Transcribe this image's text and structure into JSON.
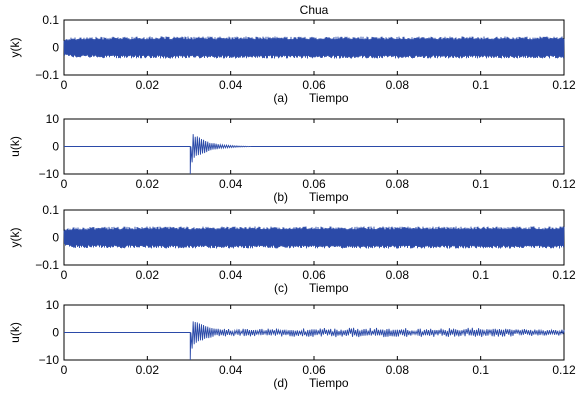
{
  "figure": {
    "title": "Chua",
    "line_color": "#2b4aa8"
  },
  "chart_data": [
    {
      "panel": "(a)",
      "type": "line",
      "title": "Chua",
      "xlabel": "Tiempo",
      "ylabel": "y(k)",
      "xlim": [
        0,
        0.12
      ],
      "ylim": [
        -0.1,
        0.1
      ],
      "xticks": [
        0,
        0.02,
        0.04,
        0.06,
        0.08,
        0.1,
        0.12
      ],
      "xticklabels": [
        "0",
        "0.02",
        "0.04",
        "0.06",
        "0.08",
        "0.1",
        "0.12"
      ],
      "yticks": [
        -0.1,
        0,
        0.1
      ],
      "yticklabels": [
        "−0.1",
        "0",
        "0.1"
      ],
      "grid": false,
      "series": [
        {
          "kind": "dense_oscillation",
          "x_range": [
            0,
            0.12
          ],
          "envelope": [
            [
              0,
              0.03
            ],
            [
              0.002,
              0.038
            ],
            [
              0.02,
              0.04
            ],
            [
              0.04,
              0.04
            ],
            [
              0.06,
              0.04
            ],
            [
              0.08,
              0.04
            ],
            [
              0.1,
              0.04
            ],
            [
              0.12,
              0.04
            ]
          ],
          "period": 0.00025
        }
      ]
    },
    {
      "panel": "(b)",
      "type": "line",
      "title": "",
      "xlabel": "Tiempo",
      "ylabel": "u(k)",
      "xlim": [
        0,
        0.12
      ],
      "ylim": [
        -10,
        10
      ],
      "xticks": [
        0,
        0.02,
        0.04,
        0.06,
        0.08,
        0.1,
        0.12
      ],
      "xticklabels": [
        "0",
        "0.02",
        "0.04",
        "0.06",
        "0.08",
        "0.1",
        "0.12"
      ],
      "yticks": [
        -10,
        0,
        10
      ],
      "yticklabels": [
        "−10",
        "0",
        "10"
      ],
      "grid": false,
      "series": [
        {
          "kind": "decaying_burst",
          "x_range": [
            0,
            0.12
          ],
          "onset": 0.0303,
          "initial_value": -10,
          "envelope": [
            [
              0.0303,
              10
            ],
            [
              0.031,
              4.5
            ],
            [
              0.033,
              3.0
            ],
            [
              0.035,
              1.5
            ],
            [
              0.038,
              0.6
            ],
            [
              0.042,
              0.2
            ],
            [
              0.045,
              0
            ]
          ],
          "period": 0.0005
        }
      ]
    },
    {
      "panel": "(c)",
      "type": "line",
      "title": "",
      "xlabel": "Tiempo",
      "ylabel": "y(k)",
      "xlim": [
        0,
        0.12
      ],
      "ylim": [
        -0.1,
        0.1
      ],
      "xticks": [
        0,
        0.02,
        0.04,
        0.06,
        0.08,
        0.1,
        0.12
      ],
      "xticklabels": [
        "0",
        "0.02",
        "0.04",
        "0.06",
        "0.08",
        "0.1",
        "0.12"
      ],
      "yticks": [
        -0.1,
        0,
        0.1
      ],
      "yticklabels": [
        "−0.1",
        "0",
        "0.1"
      ],
      "grid": false,
      "series": [
        {
          "kind": "dense_oscillation",
          "x_range": [
            0,
            0.12
          ],
          "envelope": [
            [
              0,
              0.03
            ],
            [
              0.002,
              0.038
            ],
            [
              0.02,
              0.04
            ],
            [
              0.04,
              0.04
            ],
            [
              0.06,
              0.04
            ],
            [
              0.08,
              0.04
            ],
            [
              0.1,
              0.04
            ],
            [
              0.12,
              0.04
            ]
          ],
          "period": 0.00025
        }
      ]
    },
    {
      "panel": "(d)",
      "type": "line",
      "title": "",
      "xlabel": "Tiempo",
      "ylabel": "u(k)",
      "xlim": [
        0,
        0.12
      ],
      "ylim": [
        -10,
        10
      ],
      "xticks": [
        0,
        0.02,
        0.04,
        0.06,
        0.08,
        0.1,
        0.12
      ],
      "xticklabels": [
        "0",
        "0.02",
        "0.04",
        "0.06",
        "0.08",
        "0.1",
        "0.12"
      ],
      "yticks": [
        -10,
        0,
        10
      ],
      "yticklabels": [
        "−10",
        "0",
        "10"
      ],
      "grid": false,
      "series": [
        {
          "kind": "sustained_burst",
          "x_range": [
            0,
            0.12
          ],
          "onset": 0.0303,
          "initial_value": -10,
          "envelope": [
            [
              0.0303,
              10
            ],
            [
              0.031,
              4.5
            ],
            [
              0.033,
              3.0
            ],
            [
              0.036,
              1.5
            ],
            [
              0.04,
              1.2
            ],
            [
              0.05,
              1.3
            ],
            [
              0.06,
              1.5
            ],
            [
              0.07,
              1.6
            ],
            [
              0.08,
              1.5
            ],
            [
              0.09,
              1.4
            ],
            [
              0.1,
              1.6
            ],
            [
              0.11,
              1.2
            ],
            [
              0.12,
              1.0
            ]
          ],
          "period": 0.0005
        }
      ]
    }
  ]
}
